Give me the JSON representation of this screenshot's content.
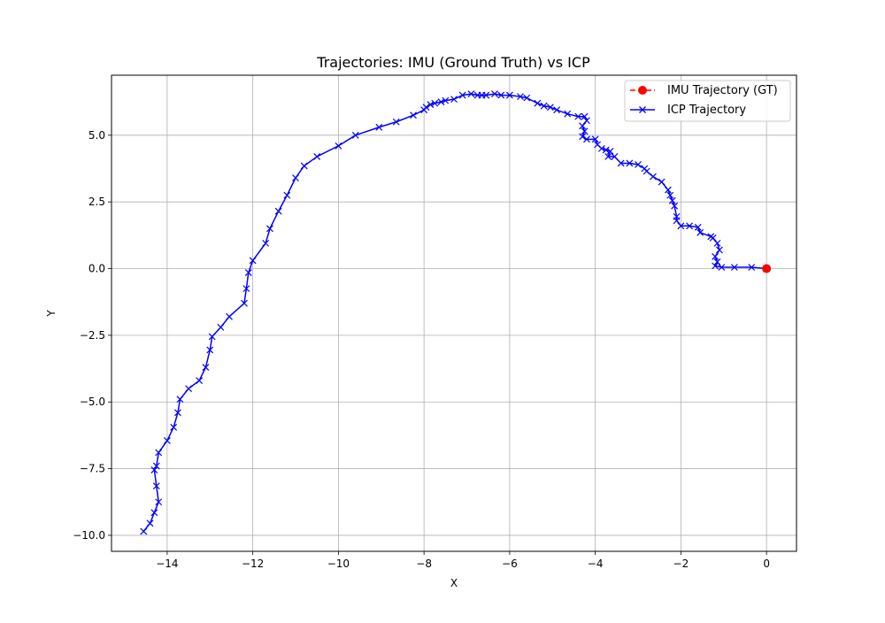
{
  "chart_data": {
    "type": "line",
    "title": "Trajectories: IMU (Ground Truth) vs ICP",
    "xlabel": "X",
    "ylabel": "Y",
    "xlim": [
      -15.3,
      0.7
    ],
    "ylim": [
      -10.6,
      7.25
    ],
    "xticks": [
      -14,
      -12,
      -10,
      -8,
      -6,
      -4,
      -2,
      0
    ],
    "yticks": [
      -10.0,
      -7.5,
      -5.0,
      -2.5,
      0.0,
      2.5,
      5.0
    ],
    "xtick_labels": [
      "−14",
      "−12",
      "−10",
      "−8",
      "−6",
      "−4",
      "−2",
      "0"
    ],
    "ytick_labels": [
      "−10.0",
      "−7.5",
      "−5.0",
      "−2.5",
      "0.0",
      "2.5",
      "5.0"
    ],
    "grid": true,
    "legend_position": "top-right",
    "series": [
      {
        "name": "IMU Trajectory (GT)",
        "color": "#ff0000",
        "line_style": "dashed",
        "marker": "circle",
        "x": [
          0.0
        ],
        "y": [
          0.0
        ]
      },
      {
        "name": "ICP Trajectory",
        "color": "#0000ff",
        "line_style": "solid",
        "marker": "x",
        "x": [
          0.0,
          -0.35,
          -0.75,
          -1.05,
          -1.2,
          -1.15,
          -1.2,
          -1.1,
          -1.15,
          -1.25,
          -1.3,
          -1.55,
          -1.6,
          -1.8,
          -2.0,
          -2.1,
          -2.1,
          -2.15,
          -2.2,
          -2.25,
          -2.3,
          -2.45,
          -2.65,
          -2.8,
          -2.85,
          -3.0,
          -3.2,
          -3.4,
          -3.55,
          -3.7,
          -3.65,
          -3.75,
          -3.85,
          -3.95,
          -4.0,
          -4.2,
          -4.3,
          -4.25,
          -4.3,
          -4.2,
          -4.25,
          -4.4,
          -4.65,
          -4.9,
          -5.05,
          -5.2,
          -5.35,
          -5.6,
          -5.75,
          -6.0,
          -6.2,
          -6.35,
          -6.55,
          -6.65,
          -6.75,
          -6.9,
          -7.1,
          -7.3,
          -7.5,
          -7.6,
          -7.75,
          -7.85,
          -7.95,
          -8.0,
          -8.25,
          -8.65,
          -9.05,
          -9.6,
          -10.0,
          -10.5,
          -10.8,
          -11.0,
          -11.2,
          -11.4,
          -11.6,
          -11.7,
          -12.0,
          -12.1,
          -12.15,
          -12.2,
          -12.55,
          -12.75,
          -12.95,
          -13.0,
          -13.1,
          -13.25,
          -13.5,
          -13.7,
          -13.75,
          -13.85,
          -14.0,
          -14.2,
          -14.25,
          -14.3,
          -14.25,
          -14.2,
          -14.3,
          -14.4,
          -14.55
        ],
        "y": [
          0.0,
          0.05,
          0.05,
          0.05,
          0.1,
          0.25,
          0.45,
          0.7,
          0.95,
          1.15,
          1.2,
          1.35,
          1.55,
          1.6,
          1.6,
          1.8,
          1.95,
          2.35,
          2.55,
          2.75,
          2.95,
          3.25,
          3.45,
          3.65,
          3.75,
          3.9,
          3.95,
          3.95,
          4.2,
          4.2,
          4.4,
          4.45,
          4.5,
          4.65,
          4.85,
          4.85,
          4.95,
          5.15,
          5.35,
          5.55,
          5.7,
          5.7,
          5.8,
          5.95,
          6.05,
          6.1,
          6.2,
          6.4,
          6.45,
          6.5,
          6.5,
          6.55,
          6.5,
          6.5,
          6.5,
          6.55,
          6.5,
          6.35,
          6.3,
          6.25,
          6.2,
          6.15,
          6.05,
          5.95,
          5.75,
          5.5,
          5.3,
          5.0,
          4.6,
          4.2,
          3.85,
          3.4,
          2.75,
          2.15,
          1.5,
          0.95,
          0.3,
          -0.15,
          -0.75,
          -1.3,
          -1.8,
          -2.2,
          -2.55,
          -3.05,
          -3.7,
          -4.2,
          -4.5,
          -4.9,
          -5.4,
          -5.95,
          -6.45,
          -6.9,
          -7.4,
          -7.55,
          -8.15,
          -8.75,
          -9.15,
          -9.55,
          -9.85
        ]
      }
    ]
  }
}
